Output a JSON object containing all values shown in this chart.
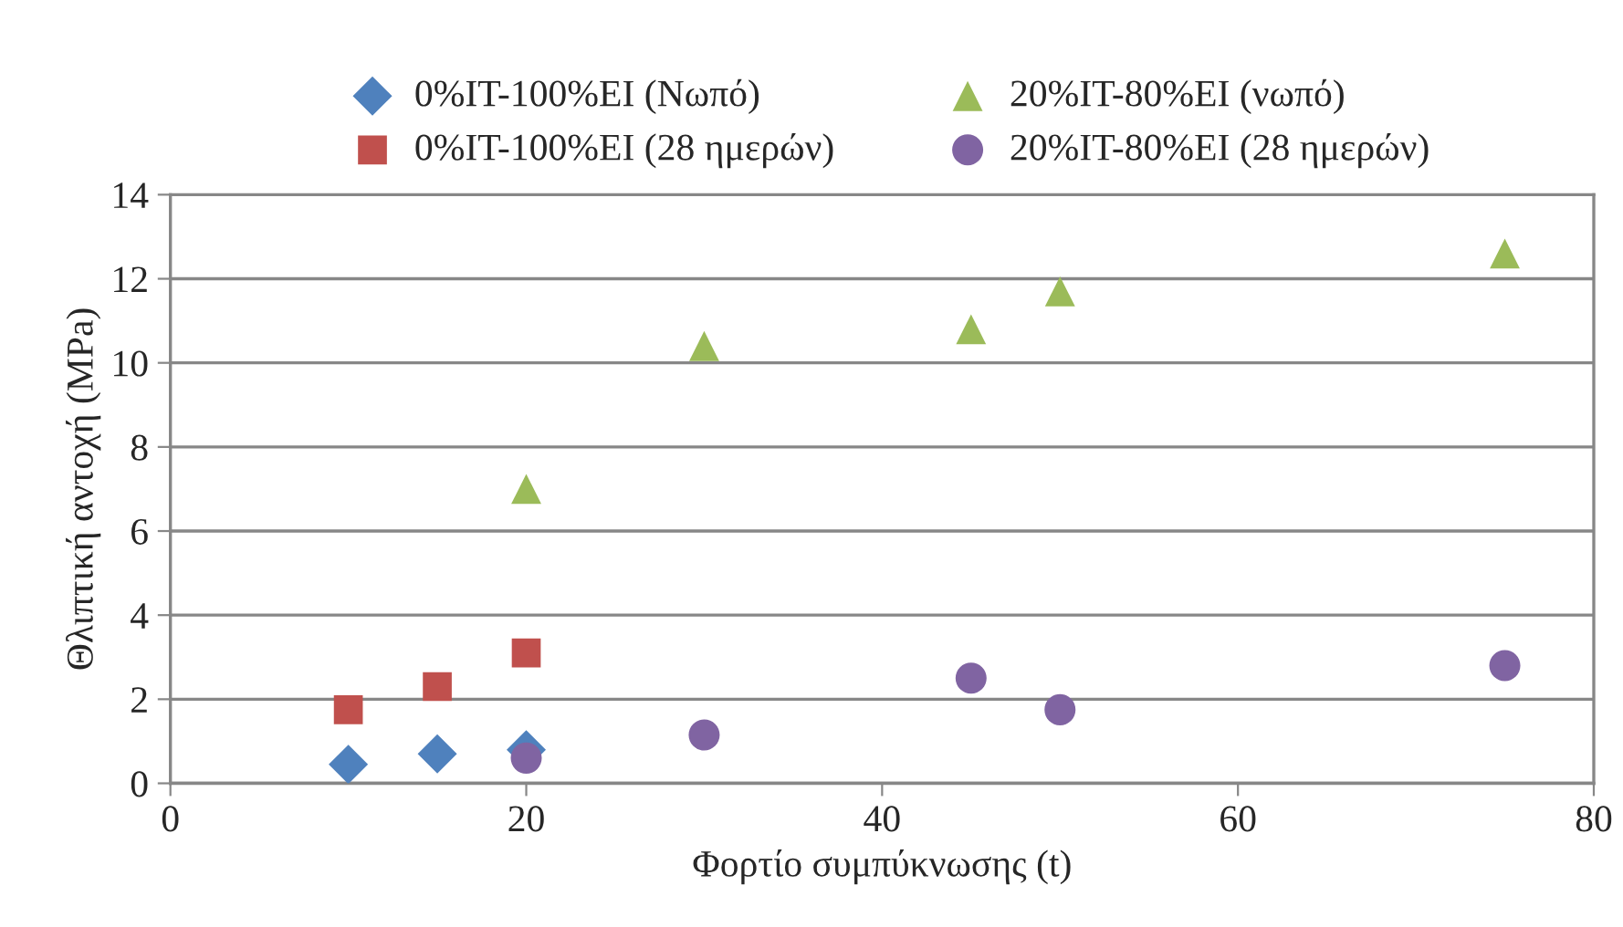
{
  "chart_data": {
    "type": "scatter",
    "xlabel": "Φορτίο συμπύκνωσης (t)",
    "ylabel": "Θλιπτική αντοχή (MPa)",
    "xlim": [
      0,
      80
    ],
    "xticks": [
      0,
      20,
      40,
      60,
      80
    ],
    "ylim": [
      0,
      14
    ],
    "yticks": [
      0,
      2,
      4,
      6,
      8,
      10,
      12,
      14
    ],
    "grid": "y",
    "legend": "top",
    "series": [
      {
        "name": "0%IT-100%EI (Νωπό)",
        "color": "#4f81bd",
        "marker": "diamond",
        "x": [
          10,
          15,
          20
        ],
        "values": [
          0.45,
          0.7,
          0.8
        ]
      },
      {
        "name": "0%IT-100%EI (28 ημερών)",
        "color": "#c0504d",
        "marker": "square",
        "x": [
          10,
          15,
          20
        ],
        "values": [
          1.75,
          2.3,
          3.1
        ]
      },
      {
        "name": "20%IT-80%EI (νωπό)",
        "color": "#9bbb59",
        "marker": "triangle",
        "x": [
          20,
          30,
          45,
          50,
          75
        ],
        "values": [
          7.0,
          10.4,
          10.8,
          11.7,
          12.6
        ]
      },
      {
        "name": "20%IT-80%EI (28 ημερών)",
        "color": "#8064a2",
        "marker": "circle",
        "x": [
          20,
          30,
          45,
          50,
          75
        ],
        "values": [
          0.6,
          1.15,
          2.5,
          1.75,
          2.8
        ]
      }
    ]
  }
}
